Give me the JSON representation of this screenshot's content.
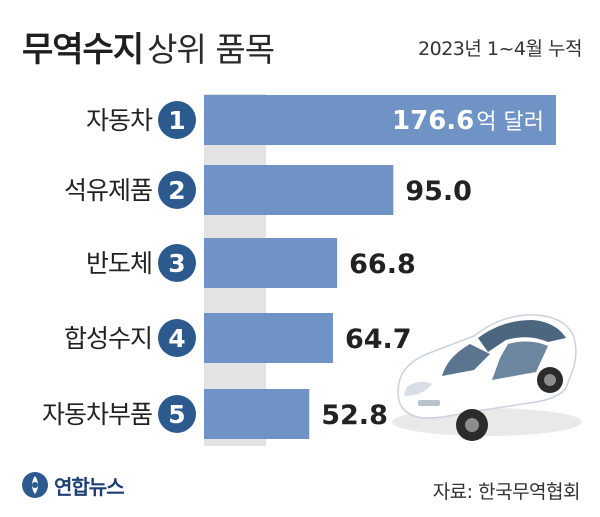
{
  "header": {
    "title_main": "무역수지",
    "title_sub": "상위 품목",
    "period": "2023년 1~4월 누적"
  },
  "footer": {
    "source": "자료: 한국무역협회",
    "logo_text": "연합뉴스"
  },
  "colors": {
    "bar": "#6f93c4",
    "badge": "#2d5a8e",
    "band": "#e3e3e3",
    "label_text": "#222222",
    "bar_value_text": "#ffffff"
  },
  "chart_data": {
    "type": "bar",
    "orientation": "horizontal",
    "unit": "억 달러",
    "categories": [
      "자동차",
      "석유제품",
      "반도체",
      "합성수지",
      "자동차부품"
    ],
    "ranks": [
      "1",
      "2",
      "3",
      "4",
      "5"
    ],
    "values": [
      176.6,
      95.0,
      66.8,
      64.7,
      52.8
    ],
    "value_labels": [
      "176.6",
      "95.0",
      "66.8",
      "64.7",
      "52.8"
    ],
    "first_label_unit": "억 달러"
  },
  "icons": [
    "car-illustration",
    "yonhap-logo-icon"
  ]
}
